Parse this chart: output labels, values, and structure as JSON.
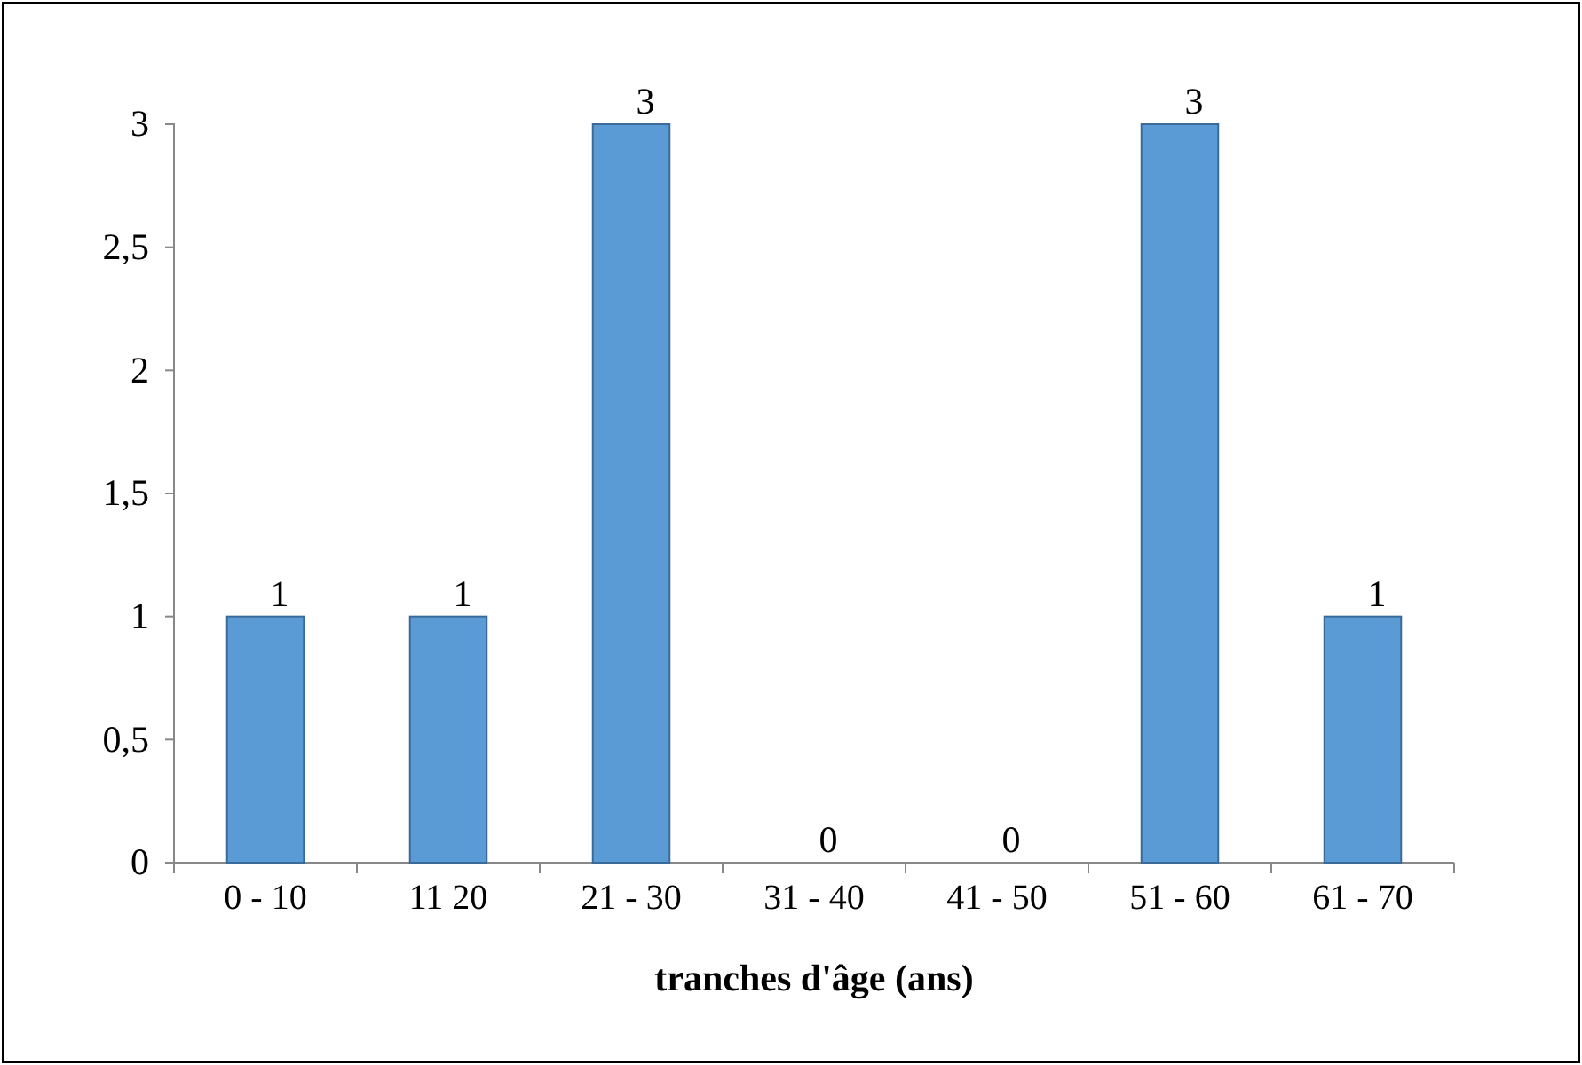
{
  "chart_data": {
    "type": "bar",
    "xlabel": "tranches d'âge (ans)",
    "categories": [
      "0 - 10",
      "11   20",
      "21 - 30",
      "31 - 40",
      "41 - 50",
      "51 - 60",
      "61 - 70"
    ],
    "values": [
      1,
      1,
      3,
      0,
      0,
      3,
      1
    ],
    "color": "#5b9bd5",
    "ylim": [
      0,
      3
    ],
    "yticks": [
      0,
      {
        "value": 0.5,
        "label": "0,5"
      },
      1,
      {
        "value": 1.5,
        "label": "1,5"
      },
      2,
      {
        "value": 2.5,
        "label": "2,5"
      },
      3
    ],
    "data_labels": true,
    "grid": false
  }
}
